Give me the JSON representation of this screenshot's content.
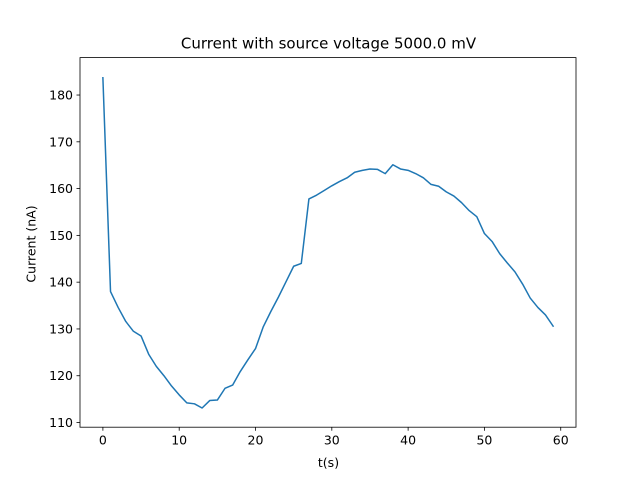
{
  "chart_data": {
    "type": "line",
    "title": "Current with source voltage 5000.0 mV",
    "xlabel": "t(s)",
    "ylabel": "Current (nA)",
    "xlim": [
      -3,
      62
    ],
    "ylim": [
      109,
      188
    ],
    "xticks": [
      0,
      10,
      20,
      30,
      40,
      50,
      60
    ],
    "yticks": [
      110,
      120,
      130,
      140,
      150,
      160,
      170,
      180
    ],
    "grid": false,
    "legend": "none",
    "series": [
      {
        "color": "#1f77b4",
        "x": [
          0,
          1,
          2,
          3,
          4,
          5,
          6,
          7,
          8,
          9,
          10,
          11,
          12,
          13,
          14,
          15,
          16,
          17,
          18,
          19,
          20,
          21,
          22,
          23,
          24,
          25,
          26,
          27,
          28,
          29,
          30,
          31,
          32,
          33,
          34,
          35,
          36,
          37,
          38,
          39,
          40,
          41,
          42,
          43,
          44,
          45,
          46,
          47,
          48,
          49,
          50,
          51,
          52,
          53,
          54,
          55,
          56,
          57,
          58,
          59
        ],
        "values": [
          183.7,
          138.0,
          134.6,
          131.6,
          129.5,
          128.5,
          124.6,
          122.0,
          120.0,
          117.8,
          115.9,
          114.2,
          114.0,
          113.1,
          114.7,
          114.8,
          117.3,
          118.0,
          120.9,
          123.4,
          125.8,
          130.4,
          133.7,
          136.8,
          140.1,
          143.4,
          144.0,
          157.8,
          158.6,
          159.6,
          160.6,
          161.5,
          162.3,
          163.5,
          163.9,
          164.2,
          164.1,
          163.2,
          165.1,
          164.2,
          163.9,
          163.2,
          162.3,
          160.9,
          160.5,
          159.3,
          158.4,
          157.0,
          155.3,
          154.0,
          150.4,
          148.7,
          146.1,
          144.1,
          142.2,
          139.6,
          136.6,
          134.6,
          133.0,
          130.6
        ]
      }
    ]
  }
}
